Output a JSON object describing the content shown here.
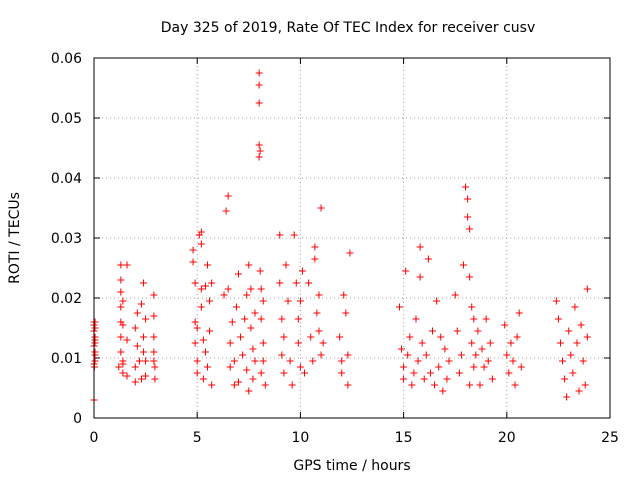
{
  "chart_data": {
    "type": "scatter",
    "title": "Day 325 of 2019, Rate Of TEC Index for receiver cusv",
    "xlabel": "GPS time / hours",
    "ylabel": "ROTI / TECUs",
    "xlim": [
      0,
      25
    ],
    "ylim": [
      0,
      0.06
    ],
    "x_ticks": [
      "0",
      "5",
      "10",
      "15",
      "20",
      "25"
    ],
    "y_ticks": [
      "0",
      "0.01",
      "0.02",
      "0.03",
      "0.04",
      "0.05",
      "0.06"
    ],
    "grid": true,
    "marker": "+",
    "color": "#ff0000",
    "series": [
      {
        "name": "",
        "x": [
          0.0,
          0.0,
          0.0,
          0.0,
          0.0,
          0.0,
          0.02,
          0.05,
          0.05,
          0.05,
          0.05,
          0.05,
          0.05,
          0.05,
          0.05,
          1.2,
          1.3,
          1.3,
          1.3,
          1.3,
          1.3,
          1.3,
          1.3,
          1.4,
          1.4,
          1.4,
          1.4,
          1.4,
          1.6,
          1.6,
          1.6,
          2.0,
          2.0,
          2.0,
          2.1,
          2.1,
          2.2,
          2.3,
          2.3,
          2.4,
          2.4,
          2.4,
          2.5,
          2.5,
          2.5,
          2.9,
          2.9,
          2.9,
          2.9,
          2.9,
          2.95,
          2.95,
          4.8,
          4.8,
          4.9,
          4.9,
          4.9,
          5.0,
          5.0,
          5.0,
          5.1,
          5.2,
          5.2,
          5.2,
          5.2,
          5.3,
          5.3,
          5.4,
          5.4,
          5.5,
          5.5,
          5.6,
          5.6,
          5.7,
          5.7,
          6.3,
          6.4,
          6.5,
          6.5,
          6.6,
          6.6,
          6.7,
          6.8,
          6.8,
          6.9,
          7.0,
          7.0,
          7.1,
          7.2,
          7.3,
          7.4,
          7.4,
          7.5,
          7.5,
          7.6,
          7.6,
          7.7,
          7.7,
          7.8,
          7.8,
          8.0,
          8.0,
          8.0,
          8.0,
          8.0,
          8.05,
          8.05,
          8.1,
          8.1,
          8.1,
          8.2,
          8.2,
          8.2,
          8.3,
          9.0,
          9.0,
          9.1,
          9.1,
          9.2,
          9.2,
          9.3,
          9.4,
          9.5,
          9.6,
          9.7,
          9.8,
          9.9,
          9.9,
          10.0,
          10.0,
          10.1,
          10.2,
          10.4,
          10.5,
          10.6,
          10.7,
          10.7,
          10.8,
          10.9,
          10.9,
          11.0,
          11.0,
          11.1,
          11.9,
          12.0,
          12.0,
          12.1,
          12.2,
          12.3,
          12.3,
          12.4,
          14.8,
          14.9,
          15.0,
          15.0,
          15.1,
          15.2,
          15.3,
          15.4,
          15.5,
          15.6,
          15.7,
          15.8,
          15.8,
          15.9,
          16.0,
          16.1,
          16.2,
          16.3,
          16.4,
          16.5,
          16.6,
          16.7,
          16.8,
          16.9,
          17.0,
          17.1,
          17.2,
          17.5,
          17.6,
          17.7,
          17.8,
          17.9,
          18.0,
          18.1,
          18.1,
          18.2,
          18.2,
          18.2,
          18.3,
          18.3,
          18.4,
          18.4,
          18.5,
          18.6,
          18.7,
          18.8,
          18.9,
          19.0,
          19.1,
          19.2,
          19.3,
          19.9,
          20.0,
          20.1,
          20.2,
          20.3,
          20.4,
          20.5,
          20.6,
          20.7,
          22.4,
          22.5,
          22.6,
          22.7,
          22.8,
          22.9,
          23.0,
          23.1,
          23.2,
          23.3,
          23.4,
          23.5,
          23.6,
          23.7,
          23.8,
          23.9,
          23.9
        ],
        "y": [
          0.003,
          0.0155,
          0.016,
          0.012,
          0.009,
          0.0145,
          0.0085,
          0.0095,
          0.0135,
          0.015,
          0.0105,
          0.011,
          0.013,
          0.016,
          0.0125,
          0.0085,
          0.0255,
          0.023,
          0.021,
          0.0185,
          0.016,
          0.0135,
          0.011,
          0.0095,
          0.009,
          0.0075,
          0.0155,
          0.0195,
          0.0255,
          0.007,
          0.013,
          0.006,
          0.0085,
          0.015,
          0.012,
          0.0175,
          0.0095,
          0.0065,
          0.019,
          0.0225,
          0.011,
          0.0135,
          0.0095,
          0.0165,
          0.007,
          0.0205,
          0.017,
          0.0135,
          0.011,
          0.0095,
          0.0065,
          0.0085,
          0.028,
          0.026,
          0.0225,
          0.016,
          0.0125,
          0.0095,
          0.0075,
          0.015,
          0.0305,
          0.031,
          0.029,
          0.0215,
          0.0185,
          0.0065,
          0.013,
          0.011,
          0.022,
          0.0255,
          0.0085,
          0.0145,
          0.0195,
          0.0225,
          0.0055,
          0.0205,
          0.0345,
          0.037,
          0.0215,
          0.0125,
          0.0085,
          0.016,
          0.0055,
          0.0095,
          0.0185,
          0.006,
          0.024,
          0.0135,
          0.0105,
          0.0165,
          0.0205,
          0.008,
          0.0255,
          0.0045,
          0.015,
          0.0215,
          0.0115,
          0.0065,
          0.0175,
          0.0095,
          0.0575,
          0.0555,
          0.0525,
          0.0455,
          0.0435,
          0.0445,
          0.0245,
          0.0215,
          0.0165,
          0.0075,
          0.0195,
          0.0125,
          0.0095,
          0.0055,
          0.0305,
          0.0225,
          0.0165,
          0.0105,
          0.0075,
          0.0135,
          0.0255,
          0.0195,
          0.0095,
          0.0055,
          0.0305,
          0.0225,
          0.0125,
          0.0165,
          0.0085,
          0.0195,
          0.0245,
          0.0075,
          0.0225,
          0.0135,
          0.0095,
          0.0265,
          0.0285,
          0.0175,
          0.0205,
          0.0145,
          0.0105,
          0.035,
          0.0125,
          0.0135,
          0.0095,
          0.0075,
          0.0205,
          0.0175,
          0.0105,
          0.0055,
          0.0275,
          0.0185,
          0.0115,
          0.0065,
          0.0085,
          0.0245,
          0.0105,
          0.0135,
          0.0055,
          0.0075,
          0.0165,
          0.0095,
          0.0235,
          0.0285,
          0.0125,
          0.0065,
          0.0105,
          0.0265,
          0.0075,
          0.0145,
          0.0055,
          0.0195,
          0.0085,
          0.0135,
          0.0045,
          0.0115,
          0.0065,
          0.0095,
          0.0205,
          0.0145,
          0.0075,
          0.0105,
          0.0255,
          0.0385,
          0.0365,
          0.0335,
          0.0315,
          0.0235,
          0.0055,
          0.0185,
          0.0125,
          0.0165,
          0.0085,
          0.0105,
          0.0145,
          0.0055,
          0.0115,
          0.0085,
          0.0165,
          0.0095,
          0.0125,
          0.0065,
          0.0155,
          0.0105,
          0.0075,
          0.0125,
          0.0095,
          0.0055,
          0.0135,
          0.0175,
          0.0085,
          0.0195,
          0.0165,
          0.0125,
          0.0095,
          0.0065,
          0.0035,
          0.0145,
          0.0105,
          0.0075,
          0.0185,
          0.0125,
          0.0045,
          0.0155,
          0.0095,
          0.0055,
          0.0215,
          0.0135
        ]
      }
    ]
  }
}
